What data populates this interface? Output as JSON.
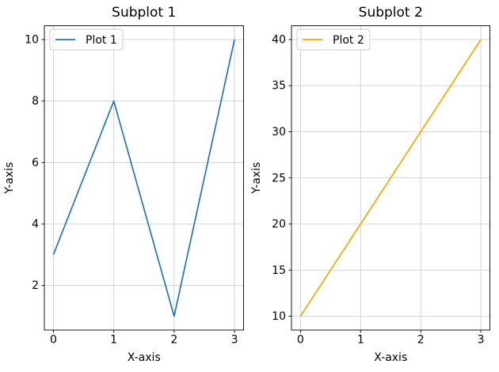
{
  "figure": {
    "background": "#ffffff",
    "grid_color": "#c8c8c8",
    "spine_color": "#000000",
    "legend_border_color": "#cccccc",
    "legend_fill": "rgba(255,255,255,0.8)"
  },
  "chart_data": [
    {
      "type": "line",
      "title": "Subplot 1",
      "xlabel": "X-axis",
      "ylabel": "Y-axis",
      "x": [
        0,
        1,
        2,
        3
      ],
      "series": [
        {
          "name": "Plot 1",
          "color": "#1f77b4",
          "values": [
            3,
            8,
            1,
            10
          ]
        }
      ],
      "xlim": [
        -0.15,
        3.15
      ],
      "ylim": [
        0.55,
        10.45
      ],
      "xticks": [
        0,
        1,
        2,
        3
      ],
      "yticks": [
        2,
        4,
        6,
        8,
        10
      ],
      "grid": true,
      "legend_position": "upper left"
    },
    {
      "type": "line",
      "title": "Subplot 2",
      "xlabel": "X-axis",
      "ylabel": "Y-axis",
      "x": [
        0,
        1,
        2,
        3
      ],
      "series": [
        {
          "name": "Plot 2",
          "color": "#ffa500",
          "values": [
            10,
            20,
            30,
            40
          ]
        }
      ],
      "xlim": [
        -0.15,
        3.15
      ],
      "ylim": [
        8.5,
        41.5
      ],
      "xticks": [
        0,
        1,
        2,
        3
      ],
      "yticks": [
        10,
        15,
        20,
        25,
        30,
        35,
        40
      ],
      "grid": true,
      "legend_position": "upper left"
    }
  ]
}
